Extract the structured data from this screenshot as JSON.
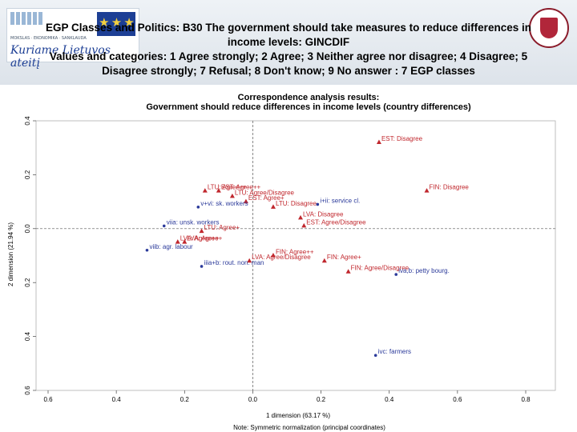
{
  "header": {
    "line1": "EGP Classes and Politics: B30 The government should take measures to reduce differences in",
    "line2": "income levels: GINCDIF",
    "line3": "Values and categories: 1 Agree strongly; 2 Agree; 3 Neither agree nor disagree; 4 Disagree; 5",
    "line4": "Disagree strongly; 7 Refusal; 8 Don't know; 9 No answer : 7 EGP classes",
    "logo_small": "MOKSLAS · EKONOMIKA · SANKLAUDA",
    "logo_slogan": "Kuriame Lietuvos ateitį",
    "eu_stars": "★ ★ ★"
  },
  "colors": {
    "country": "#c0272d",
    "class": "#2b3a9a"
  },
  "chart_data": {
    "type": "scatter",
    "title": "Correspondence analysis results:",
    "subtitle": "Government should reduce differences in income levels (country differences)",
    "xlabel": "1 dimension (63.17 %)",
    "ylabel": "2 dimension (21.94 %)",
    "note": "Note: Symmetric normalization (principal coordinates)",
    "xlim": [
      -0.6,
      0.8
    ],
    "ylim": [
      -0.6,
      0.4
    ],
    "xticks": [
      -0.6,
      -0.4,
      -0.2,
      0.0,
      0.2,
      0.4,
      0.6,
      0.8
    ],
    "yticks": [
      -0.6,
      -0.4,
      -0.2,
      0.0,
      0.2,
      0.4
    ],
    "xtick_labels": [
      "0.6",
      "0.4",
      "0.2",
      "0.0",
      "0.2",
      "0.4",
      "0.6",
      "0.8"
    ],
    "ytick_labels": [
      "0.6",
      "0.4",
      "0.2",
      "0.0",
      "0.2",
      "0.4"
    ],
    "series": [
      {
        "name": "country",
        "marker": "triangle",
        "points": [
          {
            "x": 0.37,
            "y": 0.32,
            "label": "EST: Disagree"
          },
          {
            "x": 0.51,
            "y": 0.14,
            "label": "FIN: Disagree"
          },
          {
            "x": -0.14,
            "y": 0.14,
            "label": "LTU: Agree++"
          },
          {
            "x": -0.1,
            "y": 0.14,
            "label": "EST: Agree++"
          },
          {
            "x": -0.06,
            "y": 0.12,
            "label": "LTU: Agree/Disagree"
          },
          {
            "x": -0.02,
            "y": 0.1,
            "label": "EST: Agree+"
          },
          {
            "x": 0.06,
            "y": 0.08,
            "label": "LTU: Disagree"
          },
          {
            "x": 0.14,
            "y": 0.04,
            "label": "LVA: Disagree"
          },
          {
            "x": 0.15,
            "y": 0.01,
            "label": "EST: Agree/Disagree"
          },
          {
            "x": -0.15,
            "y": -0.01,
            "label": "LTU: Agree+"
          },
          {
            "x": -0.22,
            "y": -0.05,
            "label": "LVA: Agree++"
          },
          {
            "x": -0.2,
            "y": -0.05,
            "label": "LVA: Agree+"
          },
          {
            "x": -0.01,
            "y": -0.12,
            "label": "LVA: Agree/Disagree"
          },
          {
            "x": 0.06,
            "y": -0.1,
            "label": "FIN: Agree++"
          },
          {
            "x": 0.21,
            "y": -0.12,
            "label": "FIN: Agree+"
          },
          {
            "x": 0.28,
            "y": -0.16,
            "label": "FIN: Agree/Disagree"
          }
        ]
      },
      {
        "name": "class",
        "marker": "dot",
        "points": [
          {
            "x": 0.19,
            "y": 0.09,
            "label": "i+ii: service cl."
          },
          {
            "x": -0.16,
            "y": 0.08,
            "label": "v+vi: sk. workers"
          },
          {
            "x": -0.26,
            "y": 0.01,
            "label": "viia: unsk. workers"
          },
          {
            "x": -0.31,
            "y": -0.08,
            "label": "viib: agr. labour"
          },
          {
            "x": -0.15,
            "y": -0.14,
            "label": "iiia+b: rout. non. man"
          },
          {
            "x": 0.42,
            "y": -0.17,
            "label": "iva,b: petty bourg."
          },
          {
            "x": 0.36,
            "y": -0.47,
            "label": "ivc: farmers"
          }
        ]
      }
    ]
  }
}
